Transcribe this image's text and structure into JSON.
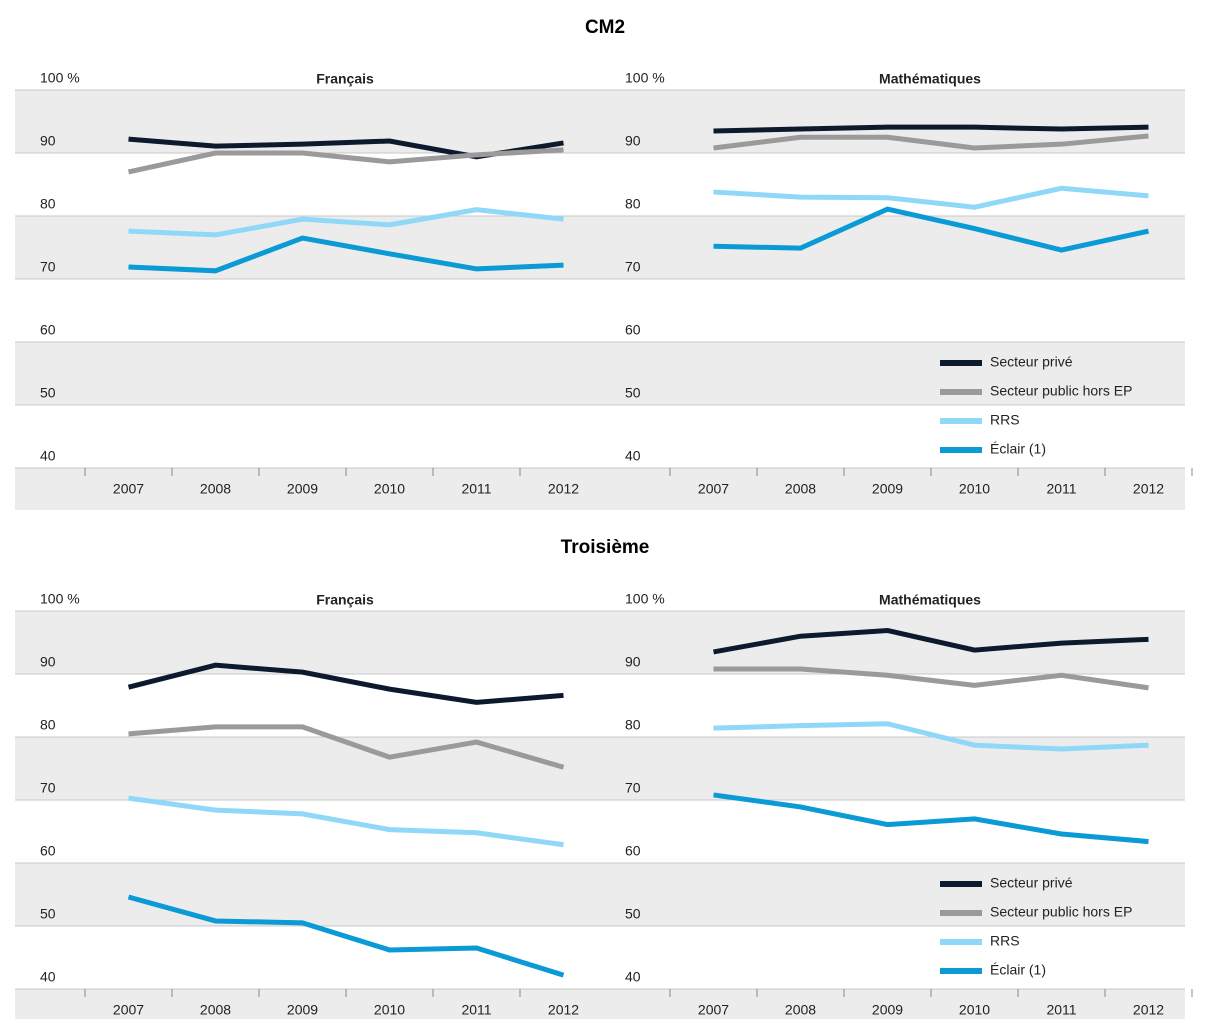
{
  "section_titles": [
    "CM2",
    "Troisième"
  ],
  "chart_data": [
    {
      "type": "line",
      "title": "Français",
      "categories": [
        "2007",
        "2008",
        "2009",
        "2010",
        "2011",
        "2012"
      ],
      "series": [
        {
          "color": "#0d1a2e",
          "values": [
            92.2,
            91.1,
            91.4,
            91.9,
            89.4,
            91.6
          ]
        },
        {
          "color": "#9a9a9a",
          "values": [
            87.0,
            90.0,
            90.0,
            88.6,
            89.7,
            90.5
          ]
        },
        {
          "color": "#8fd8f8",
          "values": [
            77.6,
            77.0,
            79.5,
            78.6,
            81.0,
            79.5
          ]
        },
        {
          "color": "#0a9ad6",
          "values": [
            71.9,
            71.3,
            76.5,
            74.0,
            71.6,
            72.2
          ]
        }
      ],
      "ylim": [
        40,
        100
      ],
      "yticks": [
        40,
        50,
        60,
        70,
        80,
        90,
        {
          "value": 100,
          "label": "100 %"
        }
      ],
      "bands": true
    },
    {
      "type": "line",
      "title": "Mathématiques",
      "categories": [
        "2007",
        "2008",
        "2009",
        "2010",
        "2011",
        "2012"
      ],
      "series": [
        {
          "name": "Secteur privé",
          "color": "#0d1a2e",
          "values": [
            93.5,
            93.8,
            94.1,
            94.1,
            93.8,
            94.1
          ]
        },
        {
          "name": "Secteur public hors EP",
          "color": "#9a9a9a",
          "values": [
            90.8,
            92.5,
            92.5,
            90.8,
            91.4,
            92.7
          ]
        },
        {
          "name": "RRS",
          "color": "#8fd8f8",
          "values": [
            83.8,
            83.0,
            82.9,
            81.4,
            84.4,
            83.2
          ]
        },
        {
          "name": "Éclair (1)",
          "color": "#0a9ad6",
          "values": [
            75.2,
            74.9,
            81.1,
            78.0,
            74.6,
            77.6
          ]
        }
      ],
      "ylim": [
        40,
        100
      ],
      "yticks": [
        40,
        50,
        60,
        70,
        80,
        90,
        {
          "value": 100,
          "label": "100 %"
        }
      ],
      "bands": true,
      "legend": "lower right"
    },
    {
      "type": "line",
      "title": "Français",
      "categories": [
        "2007",
        "2008",
        "2009",
        "2010",
        "2011",
        "2012"
      ],
      "series": [
        {
          "color": "#0d1a2e",
          "values": [
            87.9,
            91.4,
            90.3,
            87.6,
            85.5,
            86.6
          ]
        },
        {
          "color": "#9a9a9a",
          "values": [
            80.5,
            81.6,
            81.6,
            76.8,
            79.2,
            75.2
          ]
        },
        {
          "color": "#8fd8f8",
          "values": [
            70.3,
            68.4,
            67.8,
            65.3,
            64.8,
            62.9
          ]
        },
        {
          "color": "#0a9ad6",
          "values": [
            54.6,
            50.8,
            50.5,
            46.2,
            46.5,
            42.2
          ]
        }
      ],
      "ylim": [
        40,
        100
      ],
      "yticks": [
        40,
        50,
        60,
        70,
        80,
        90,
        {
          "value": 100,
          "label": "100 %"
        }
      ],
      "bands": true
    },
    {
      "type": "line",
      "title": "Mathématiques",
      "categories": [
        "2007",
        "2008",
        "2009",
        "2010",
        "2011",
        "2012"
      ],
      "series": [
        {
          "name": "Secteur privé",
          "color": "#0d1a2e",
          "values": [
            93.5,
            96.0,
            96.9,
            93.8,
            94.9,
            95.5
          ]
        },
        {
          "name": "Secteur public hors EP",
          "color": "#9a9a9a",
          "values": [
            90.8,
            90.8,
            89.8,
            88.2,
            89.8,
            87.8
          ]
        },
        {
          "name": "RRS",
          "color": "#8fd8f8",
          "values": [
            81.4,
            81.8,
            82.1,
            78.7,
            78.1,
            78.7
          ]
        },
        {
          "name": "Éclair (1)",
          "color": "#0a9ad6",
          "values": [
            70.8,
            68.9,
            66.1,
            67.0,
            64.6,
            63.4
          ]
        }
      ],
      "ylim": [
        40,
        100
      ],
      "yticks": [
        40,
        50,
        60,
        70,
        80,
        90,
        {
          "value": 100,
          "label": "100 %"
        }
      ],
      "bands": true,
      "legend": "lower right"
    }
  ]
}
